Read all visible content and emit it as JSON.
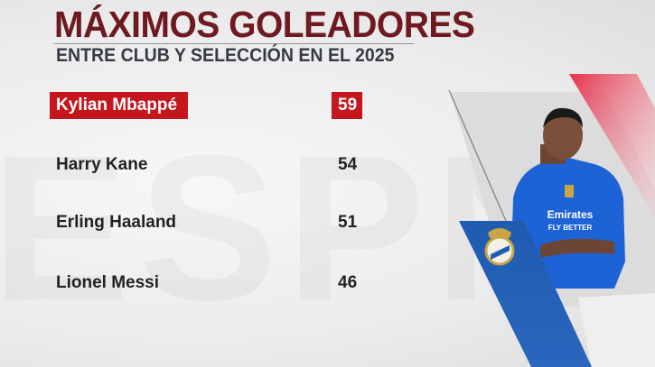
{
  "header": {
    "title": "MÁXIMOS GOLEADORES",
    "subtitle": "ENTRE CLUB Y SELECCIÓN EN EL 2025"
  },
  "rows": [
    {
      "name": "Kylian Mbappé",
      "goals": "59",
      "highlighted": true
    },
    {
      "name": "Harry Kane",
      "goals": "54",
      "highlighted": false
    },
    {
      "name": "Erling Haaland",
      "goals": "51",
      "highlighted": false
    },
    {
      "name": "Lionel Messi",
      "goals": "46",
      "highlighted": false
    }
  ],
  "colors": {
    "title": "#6e1a20",
    "highlight": "#c4161c",
    "club_blue": "#1f5bb0",
    "accent_red": "#e23a50"
  },
  "player_image": {
    "club_crest": "real-madrid-crest-icon",
    "shirt_sponsor": "Emirates FLY BETTER"
  }
}
